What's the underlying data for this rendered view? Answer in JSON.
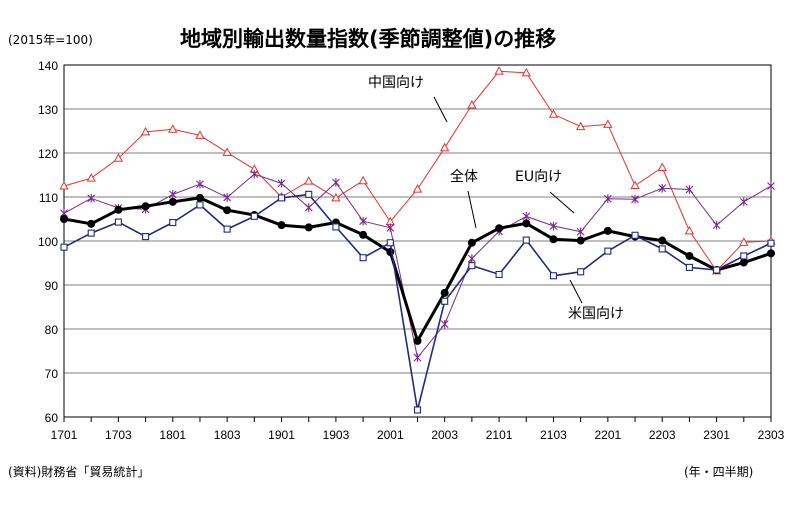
{
  "header": {
    "title": "地域別輸出数量指数(季節調整値)の推移",
    "base_note": "(2015年=100)"
  },
  "footer": {
    "source": "(資料)財務省「貿易統計」",
    "x_unit": "(年・四半期)"
  },
  "chart_data": {
    "type": "line",
    "title": "地域別輸出数量指数(季節調整値)の推移",
    "xlabel": "(年・四半期)",
    "ylabel": "(2015年=100)",
    "ylim": [
      60,
      140
    ],
    "yticks": [
      60,
      70,
      80,
      90,
      100,
      110,
      120,
      130,
      140
    ],
    "grid": "horizontal",
    "x": [
      "1701",
      "1702",
      "1703",
      "1704",
      "1801",
      "1802",
      "1803",
      "1804",
      "1901",
      "1902",
      "1903",
      "1904",
      "2001",
      "2002",
      "2003",
      "2004",
      "2101",
      "2102",
      "2103",
      "2104",
      "2201",
      "2202",
      "2203",
      "2204",
      "2301",
      "2302",
      "2303"
    ],
    "xtick_labels": [
      "1701",
      "1703",
      "1801",
      "1803",
      "1901",
      "1903",
      "2001",
      "2003",
      "2101",
      "2103",
      "2201",
      "2203",
      "2301",
      "2303"
    ],
    "series": [
      {
        "name": "中国向け",
        "color": "#e8322d",
        "marker": "triangle",
        "line_width": 1,
        "values": [
          112.5,
          114.3,
          118.8,
          124.8,
          125.4,
          124.0,
          120.1,
          116.3,
          110.0,
          113.6,
          109.8,
          113.7,
          104.4,
          111.8,
          121.2,
          130.9,
          138.6,
          138.2,
          128.8,
          126.0,
          126.5,
          112.6,
          116.7,
          102.3,
          93.2,
          99.7,
          100.0
        ]
      },
      {
        "name": "EU向け",
        "color": "#7a2a8c",
        "marker": "star",
        "line_width": 1,
        "values": [
          106.3,
          109.7,
          107.5,
          107.2,
          110.6,
          112.9,
          109.9,
          115.2,
          113.1,
          107.6,
          113.3,
          104.5,
          103.0,
          73.5,
          81.1,
          96.0,
          102.2,
          105.6,
          103.4,
          102.1,
          109.6,
          109.5,
          112.0,
          111.7,
          103.6,
          108.9,
          112.5
        ]
      },
      {
        "name": "全体",
        "color": "#000000",
        "marker": "dot",
        "line_width": 3,
        "values": [
          105.0,
          103.9,
          107.1,
          107.9,
          108.9,
          109.8,
          107.0,
          105.9,
          103.6,
          103.1,
          104.2,
          101.4,
          97.5,
          77.3,
          88.2,
          99.6,
          102.9,
          104.0,
          100.4,
          100.1,
          102.3,
          101.0,
          100.1,
          96.6,
          93.4,
          95.1,
          97.2
        ]
      },
      {
        "name": "米国向け",
        "color": "#1f2d7a",
        "marker": "square",
        "line_width": 1.6,
        "values": [
          98.6,
          101.8,
          104.3,
          101.0,
          104.2,
          108.2,
          102.7,
          105.6,
          109.8,
          110.6,
          103.2,
          96.2,
          99.6,
          61.6,
          86.3,
          94.4,
          92.4,
          100.2,
          92.1,
          93.0,
          97.7,
          101.3,
          98.2,
          94.0,
          93.4,
          96.6,
          99.5
        ]
      }
    ]
  }
}
